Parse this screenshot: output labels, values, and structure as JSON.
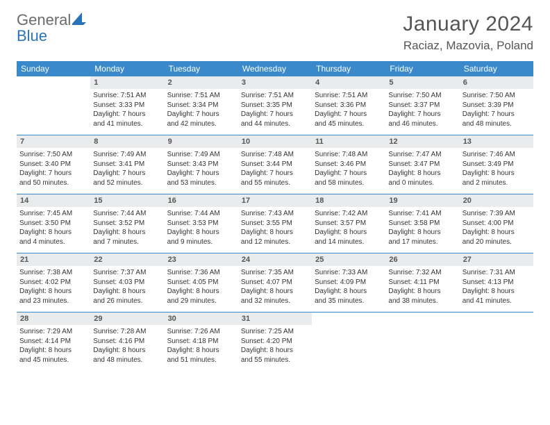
{
  "logo": {
    "word1": "General",
    "word2": "Blue"
  },
  "header": {
    "month": "January 2024",
    "location": "Raciaz, Mazovia, Poland"
  },
  "colors": {
    "header_bar": "#3a8acb",
    "daynum_bg": "#e9ebec",
    "text": "#333333",
    "title": "#555555",
    "logo_gray": "#6b6b6b",
    "logo_blue": "#2a73b8",
    "sail_fill": "#2a73b8"
  },
  "dow": [
    "Sunday",
    "Monday",
    "Tuesday",
    "Wednesday",
    "Thursday",
    "Friday",
    "Saturday"
  ],
  "weeks": [
    [
      null,
      {
        "n": "1",
        "sr": "Sunrise: 7:51 AM",
        "ss": "Sunset: 3:33 PM",
        "d1": "Daylight: 7 hours",
        "d2": "and 41 minutes."
      },
      {
        "n": "2",
        "sr": "Sunrise: 7:51 AM",
        "ss": "Sunset: 3:34 PM",
        "d1": "Daylight: 7 hours",
        "d2": "and 42 minutes."
      },
      {
        "n": "3",
        "sr": "Sunrise: 7:51 AM",
        "ss": "Sunset: 3:35 PM",
        "d1": "Daylight: 7 hours",
        "d2": "and 44 minutes."
      },
      {
        "n": "4",
        "sr": "Sunrise: 7:51 AM",
        "ss": "Sunset: 3:36 PM",
        "d1": "Daylight: 7 hours",
        "d2": "and 45 minutes."
      },
      {
        "n": "5",
        "sr": "Sunrise: 7:50 AM",
        "ss": "Sunset: 3:37 PM",
        "d1": "Daylight: 7 hours",
        "d2": "and 46 minutes."
      },
      {
        "n": "6",
        "sr": "Sunrise: 7:50 AM",
        "ss": "Sunset: 3:39 PM",
        "d1": "Daylight: 7 hours",
        "d2": "and 48 minutes."
      }
    ],
    [
      {
        "n": "7",
        "sr": "Sunrise: 7:50 AM",
        "ss": "Sunset: 3:40 PM",
        "d1": "Daylight: 7 hours",
        "d2": "and 50 minutes."
      },
      {
        "n": "8",
        "sr": "Sunrise: 7:49 AM",
        "ss": "Sunset: 3:41 PM",
        "d1": "Daylight: 7 hours",
        "d2": "and 52 minutes."
      },
      {
        "n": "9",
        "sr": "Sunrise: 7:49 AM",
        "ss": "Sunset: 3:43 PM",
        "d1": "Daylight: 7 hours",
        "d2": "and 53 minutes."
      },
      {
        "n": "10",
        "sr": "Sunrise: 7:48 AM",
        "ss": "Sunset: 3:44 PM",
        "d1": "Daylight: 7 hours",
        "d2": "and 55 minutes."
      },
      {
        "n": "11",
        "sr": "Sunrise: 7:48 AM",
        "ss": "Sunset: 3:46 PM",
        "d1": "Daylight: 7 hours",
        "d2": "and 58 minutes."
      },
      {
        "n": "12",
        "sr": "Sunrise: 7:47 AM",
        "ss": "Sunset: 3:47 PM",
        "d1": "Daylight: 8 hours",
        "d2": "and 0 minutes."
      },
      {
        "n": "13",
        "sr": "Sunrise: 7:46 AM",
        "ss": "Sunset: 3:49 PM",
        "d1": "Daylight: 8 hours",
        "d2": "and 2 minutes."
      }
    ],
    [
      {
        "n": "14",
        "sr": "Sunrise: 7:45 AM",
        "ss": "Sunset: 3:50 PM",
        "d1": "Daylight: 8 hours",
        "d2": "and 4 minutes."
      },
      {
        "n": "15",
        "sr": "Sunrise: 7:44 AM",
        "ss": "Sunset: 3:52 PM",
        "d1": "Daylight: 8 hours",
        "d2": "and 7 minutes."
      },
      {
        "n": "16",
        "sr": "Sunrise: 7:44 AM",
        "ss": "Sunset: 3:53 PM",
        "d1": "Daylight: 8 hours",
        "d2": "and 9 minutes."
      },
      {
        "n": "17",
        "sr": "Sunrise: 7:43 AM",
        "ss": "Sunset: 3:55 PM",
        "d1": "Daylight: 8 hours",
        "d2": "and 12 minutes."
      },
      {
        "n": "18",
        "sr": "Sunrise: 7:42 AM",
        "ss": "Sunset: 3:57 PM",
        "d1": "Daylight: 8 hours",
        "d2": "and 14 minutes."
      },
      {
        "n": "19",
        "sr": "Sunrise: 7:41 AM",
        "ss": "Sunset: 3:58 PM",
        "d1": "Daylight: 8 hours",
        "d2": "and 17 minutes."
      },
      {
        "n": "20",
        "sr": "Sunrise: 7:39 AM",
        "ss": "Sunset: 4:00 PM",
        "d1": "Daylight: 8 hours",
        "d2": "and 20 minutes."
      }
    ],
    [
      {
        "n": "21",
        "sr": "Sunrise: 7:38 AM",
        "ss": "Sunset: 4:02 PM",
        "d1": "Daylight: 8 hours",
        "d2": "and 23 minutes."
      },
      {
        "n": "22",
        "sr": "Sunrise: 7:37 AM",
        "ss": "Sunset: 4:03 PM",
        "d1": "Daylight: 8 hours",
        "d2": "and 26 minutes."
      },
      {
        "n": "23",
        "sr": "Sunrise: 7:36 AM",
        "ss": "Sunset: 4:05 PM",
        "d1": "Daylight: 8 hours",
        "d2": "and 29 minutes."
      },
      {
        "n": "24",
        "sr": "Sunrise: 7:35 AM",
        "ss": "Sunset: 4:07 PM",
        "d1": "Daylight: 8 hours",
        "d2": "and 32 minutes."
      },
      {
        "n": "25",
        "sr": "Sunrise: 7:33 AM",
        "ss": "Sunset: 4:09 PM",
        "d1": "Daylight: 8 hours",
        "d2": "and 35 minutes."
      },
      {
        "n": "26",
        "sr": "Sunrise: 7:32 AM",
        "ss": "Sunset: 4:11 PM",
        "d1": "Daylight: 8 hours",
        "d2": "and 38 minutes."
      },
      {
        "n": "27",
        "sr": "Sunrise: 7:31 AM",
        "ss": "Sunset: 4:13 PM",
        "d1": "Daylight: 8 hours",
        "d2": "and 41 minutes."
      }
    ],
    [
      {
        "n": "28",
        "sr": "Sunrise: 7:29 AM",
        "ss": "Sunset: 4:14 PM",
        "d1": "Daylight: 8 hours",
        "d2": "and 45 minutes."
      },
      {
        "n": "29",
        "sr": "Sunrise: 7:28 AM",
        "ss": "Sunset: 4:16 PM",
        "d1": "Daylight: 8 hours",
        "d2": "and 48 minutes."
      },
      {
        "n": "30",
        "sr": "Sunrise: 7:26 AM",
        "ss": "Sunset: 4:18 PM",
        "d1": "Daylight: 8 hours",
        "d2": "and 51 minutes."
      },
      {
        "n": "31",
        "sr": "Sunrise: 7:25 AM",
        "ss": "Sunset: 4:20 PM",
        "d1": "Daylight: 8 hours",
        "d2": "and 55 minutes."
      },
      null,
      null,
      null
    ]
  ]
}
